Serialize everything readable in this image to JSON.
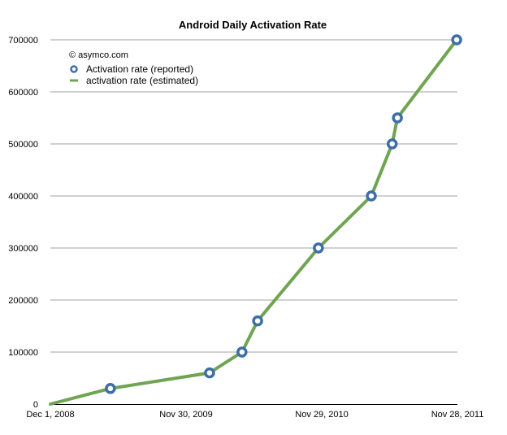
{
  "chart_data": {
    "type": "line",
    "title": "Android Daily Activation Rate",
    "xlabel": "",
    "ylabel": "",
    "x_unit": "days since Dec 1, 2008",
    "xlim": [
      0,
      1092
    ],
    "ylim": [
      0,
      700000
    ],
    "grid": true,
    "yticks": [
      0,
      100000,
      200000,
      300000,
      400000,
      500000,
      600000,
      700000
    ],
    "ytick_labels": [
      "0",
      "100000",
      "200000",
      "300000",
      "400000",
      "500000",
      "600000",
      "700000"
    ],
    "xticks": [
      0,
      364,
      728,
      1092
    ],
    "xtick_labels": [
      "Dec 1, 2008",
      "Nov 30, 2009",
      "Nov 29, 2010",
      "Nov 28, 2011"
    ],
    "annotation": "© asymco.com",
    "legend_position": "top-left",
    "series": [
      {
        "name": "Activation rate (reported)",
        "style": "markers",
        "color": "#3d6ea5",
        "x": [
          161,
          427,
          514,
          556,
          719,
          861,
          917,
          931,
          1090
        ],
        "values": [
          30000,
          60000,
          100000,
          160000,
          300000,
          400000,
          500000,
          550000,
          700000
        ]
      },
      {
        "name": "activation rate (estimated)",
        "style": "line",
        "color": "#6fa552",
        "x": [
          0,
          161,
          427,
          514,
          556,
          719,
          861,
          917,
          931,
          1090
        ],
        "values": [
          0,
          30000,
          60000,
          100000,
          160000,
          300000,
          400000,
          500000,
          550000,
          700000
        ]
      }
    ]
  }
}
